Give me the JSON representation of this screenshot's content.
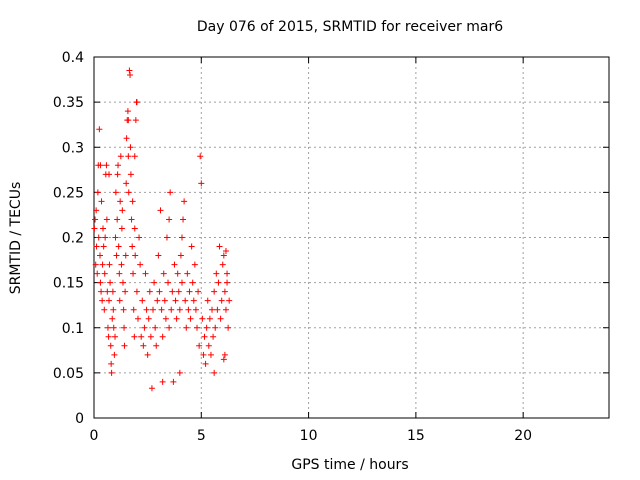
{
  "chart_data": {
    "type": "scatter",
    "title": "Day 076 of 2015, SRMTID for receiver mar6",
    "xlabel": "GPS time / hours",
    "ylabel": "SRMTID / TECUs",
    "xlim": [
      0,
      24
    ],
    "ylim": [
      0,
      0.4
    ],
    "x_ticks": [
      0,
      5,
      10,
      15,
      20
    ],
    "x_tick_labels": [
      "0",
      "5",
      "10",
      "15",
      "20"
    ],
    "y_ticks": [
      0,
      0.05,
      0.1,
      0.15,
      0.2,
      0.25,
      0.3,
      0.35,
      0.4
    ],
    "y_tick_labels": [
      "0",
      "0.05",
      "0.1",
      "0.15",
      "0.2",
      "0.25",
      "0.3",
      "0.35",
      "0.4"
    ],
    "grid": true,
    "marker": "plus",
    "series": [
      {
        "name": "SRMTID",
        "color": "#ff0000",
        "points": [
          [
            0.02,
            0.21
          ],
          [
            0.05,
            0.22
          ],
          [
            0.08,
            0.17
          ],
          [
            0.1,
            0.23
          ],
          [
            0.12,
            0.19
          ],
          [
            0.15,
            0.16
          ],
          [
            0.18,
            0.25
          ],
          [
            0.2,
            0.28
          ],
          [
            0.22,
            0.2
          ],
          [
            0.25,
            0.32
          ],
          [
            0.28,
            0.18
          ],
          [
            0.3,
            0.15
          ],
          [
            0.33,
            0.14
          ],
          [
            0.35,
            0.24
          ],
          [
            0.38,
            0.13
          ],
          [
            0.4,
            0.17
          ],
          [
            0.42,
            0.21
          ],
          [
            0.45,
            0.19
          ],
          [
            0.48,
            0.12
          ],
          [
            0.5,
            0.16
          ],
          [
            0.52,
            0.2
          ],
          [
            0.55,
            0.27
          ],
          [
            0.58,
            0.28
          ],
          [
            0.6,
            0.22
          ],
          [
            0.62,
            0.14
          ],
          [
            0.65,
            0.1
          ],
          [
            0.68,
            0.09
          ],
          [
            0.7,
            0.13
          ],
          [
            0.72,
            0.17
          ],
          [
            0.75,
            0.15
          ],
          [
            0.78,
            0.08
          ],
          [
            0.8,
            0.06
          ],
          [
            0.82,
            0.05
          ],
          [
            0.85,
            0.11
          ],
          [
            0.88,
            0.14
          ],
          [
            0.9,
            0.12
          ],
          [
            0.92,
            0.1
          ],
          [
            0.95,
            0.07
          ],
          [
            0.98,
            0.09
          ],
          [
            1.0,
            0.2
          ],
          [
            1.02,
            0.25
          ],
          [
            1.05,
            0.18
          ],
          [
            1.08,
            0.22
          ],
          [
            1.1,
            0.27
          ],
          [
            1.12,
            0.28
          ],
          [
            1.15,
            0.19
          ],
          [
            1.18,
            0.16
          ],
          [
            1.2,
            0.13
          ],
          [
            1.22,
            0.24
          ],
          [
            1.25,
            0.29
          ],
          [
            1.28,
            0.17
          ],
          [
            1.3,
            0.21
          ],
          [
            1.32,
            0.23
          ],
          [
            1.35,
            0.15
          ],
          [
            1.38,
            0.12
          ],
          [
            1.4,
            0.1
          ],
          [
            1.42,
            0.08
          ],
          [
            1.45,
            0.14
          ],
          [
            1.48,
            0.18
          ],
          [
            1.5,
            0.26
          ],
          [
            1.52,
            0.31
          ],
          [
            1.55,
            0.33
          ],
          [
            1.58,
            0.34
          ],
          [
            1.6,
            0.29
          ],
          [
            1.62,
            0.25
          ],
          [
            1.65,
            0.385
          ],
          [
            1.68,
            0.38
          ],
          [
            1.7,
            0.3
          ],
          [
            1.72,
            0.27
          ],
          [
            1.75,
            0.22
          ],
          [
            1.78,
            0.19
          ],
          [
            1.8,
            0.24
          ],
          [
            1.82,
            0.16
          ],
          [
            1.85,
            0.12
          ],
          [
            1.88,
            0.09
          ],
          [
            1.9,
            0.21
          ],
          [
            1.92,
            0.18
          ],
          [
            1.95,
            0.33
          ],
          [
            1.98,
            0.35
          ],
          [
            2.0,
            0.14
          ],
          [
            2.05,
            0.11
          ],
          [
            2.1,
            0.2
          ],
          [
            2.15,
            0.17
          ],
          [
            2.2,
            0.09
          ],
          [
            2.25,
            0.13
          ],
          [
            2.3,
            0.08
          ],
          [
            2.35,
            0.1
          ],
          [
            2.4,
            0.16
          ],
          [
            2.45,
            0.12
          ],
          [
            2.5,
            0.07
          ],
          [
            2.55,
            0.11
          ],
          [
            2.6,
            0.14
          ],
          [
            2.65,
            0.09
          ],
          [
            2.7,
            0.033
          ],
          [
            2.75,
            0.12
          ],
          [
            2.8,
            0.15
          ],
          [
            2.85,
            0.1
          ],
          [
            2.9,
            0.08
          ],
          [
            2.95,
            0.13
          ],
          [
            3.0,
            0.18
          ],
          [
            3.05,
            0.14
          ],
          [
            3.1,
            0.23
          ],
          [
            3.15,
            0.12
          ],
          [
            3.2,
            0.09
          ],
          [
            3.25,
            0.16
          ],
          [
            3.3,
            0.13
          ],
          [
            3.35,
            0.11
          ],
          [
            3.4,
            0.2
          ],
          [
            3.45,
            0.15
          ],
          [
            3.5,
            0.1
          ],
          [
            3.55,
            0.25
          ],
          [
            3.6,
            0.12
          ],
          [
            3.65,
            0.14
          ],
          [
            3.7,
            0.04
          ],
          [
            3.75,
            0.17
          ],
          [
            3.8,
            0.13
          ],
          [
            3.85,
            0.11
          ],
          [
            3.9,
            0.16
          ],
          [
            3.95,
            0.14
          ],
          [
            4.0,
            0.12
          ],
          [
            4.05,
            0.18
          ],
          [
            4.1,
            0.15
          ],
          [
            4.15,
            0.22
          ],
          [
            4.2,
            0.24
          ],
          [
            4.25,
            0.13
          ],
          [
            4.3,
            0.1
          ],
          [
            4.35,
            0.16
          ],
          [
            4.4,
            0.12
          ],
          [
            4.45,
            0.14
          ],
          [
            4.5,
            0.11
          ],
          [
            4.55,
            0.19
          ],
          [
            4.6,
            0.15
          ],
          [
            4.65,
            0.13
          ],
          [
            4.7,
            0.17
          ],
          [
            4.75,
            0.12
          ],
          [
            4.8,
            0.1
          ],
          [
            4.85,
            0.14
          ],
          [
            4.9,
            0.08
          ],
          [
            4.95,
            0.29
          ],
          [
            5.0,
            0.26
          ],
          [
            5.05,
            0.11
          ],
          [
            5.1,
            0.07
          ],
          [
            5.15,
            0.09
          ],
          [
            5.2,
            0.06
          ],
          [
            5.25,
            0.1
          ],
          [
            5.3,
            0.13
          ],
          [
            5.35,
            0.08
          ],
          [
            5.4,
            0.11
          ],
          [
            5.45,
            0.07
          ],
          [
            5.5,
            0.12
          ],
          [
            5.55,
            0.09
          ],
          [
            5.6,
            0.14
          ],
          [
            5.65,
            0.1
          ],
          [
            5.7,
            0.16
          ],
          [
            5.75,
            0.12
          ],
          [
            5.8,
            0.15
          ],
          [
            5.85,
            0.19
          ],
          [
            5.9,
            0.11
          ],
          [
            5.95,
            0.13
          ],
          [
            6.0,
            0.17
          ],
          [
            6.05,
            0.18
          ],
          [
            6.1,
            0.14
          ],
          [
            6.15,
            0.12
          ],
          [
            6.2,
            0.16
          ],
          [
            6.25,
            0.1
          ],
          [
            6.3,
            0.13
          ],
          [
            6.05,
            0.065
          ],
          [
            6.1,
            0.07
          ],
          [
            6.15,
            0.185
          ],
          [
            6.2,
            0.15
          ],
          [
            0.3,
            0.28
          ],
          [
            0.7,
            0.27
          ],
          [
            1.6,
            0.33
          ],
          [
            2.0,
            0.35
          ],
          [
            1.9,
            0.29
          ],
          [
            3.5,
            0.22
          ],
          [
            4.1,
            0.2
          ],
          [
            4.0,
            0.05
          ],
          [
            3.2,
            0.04
          ],
          [
            5.6,
            0.05
          ]
        ]
      }
    ]
  }
}
